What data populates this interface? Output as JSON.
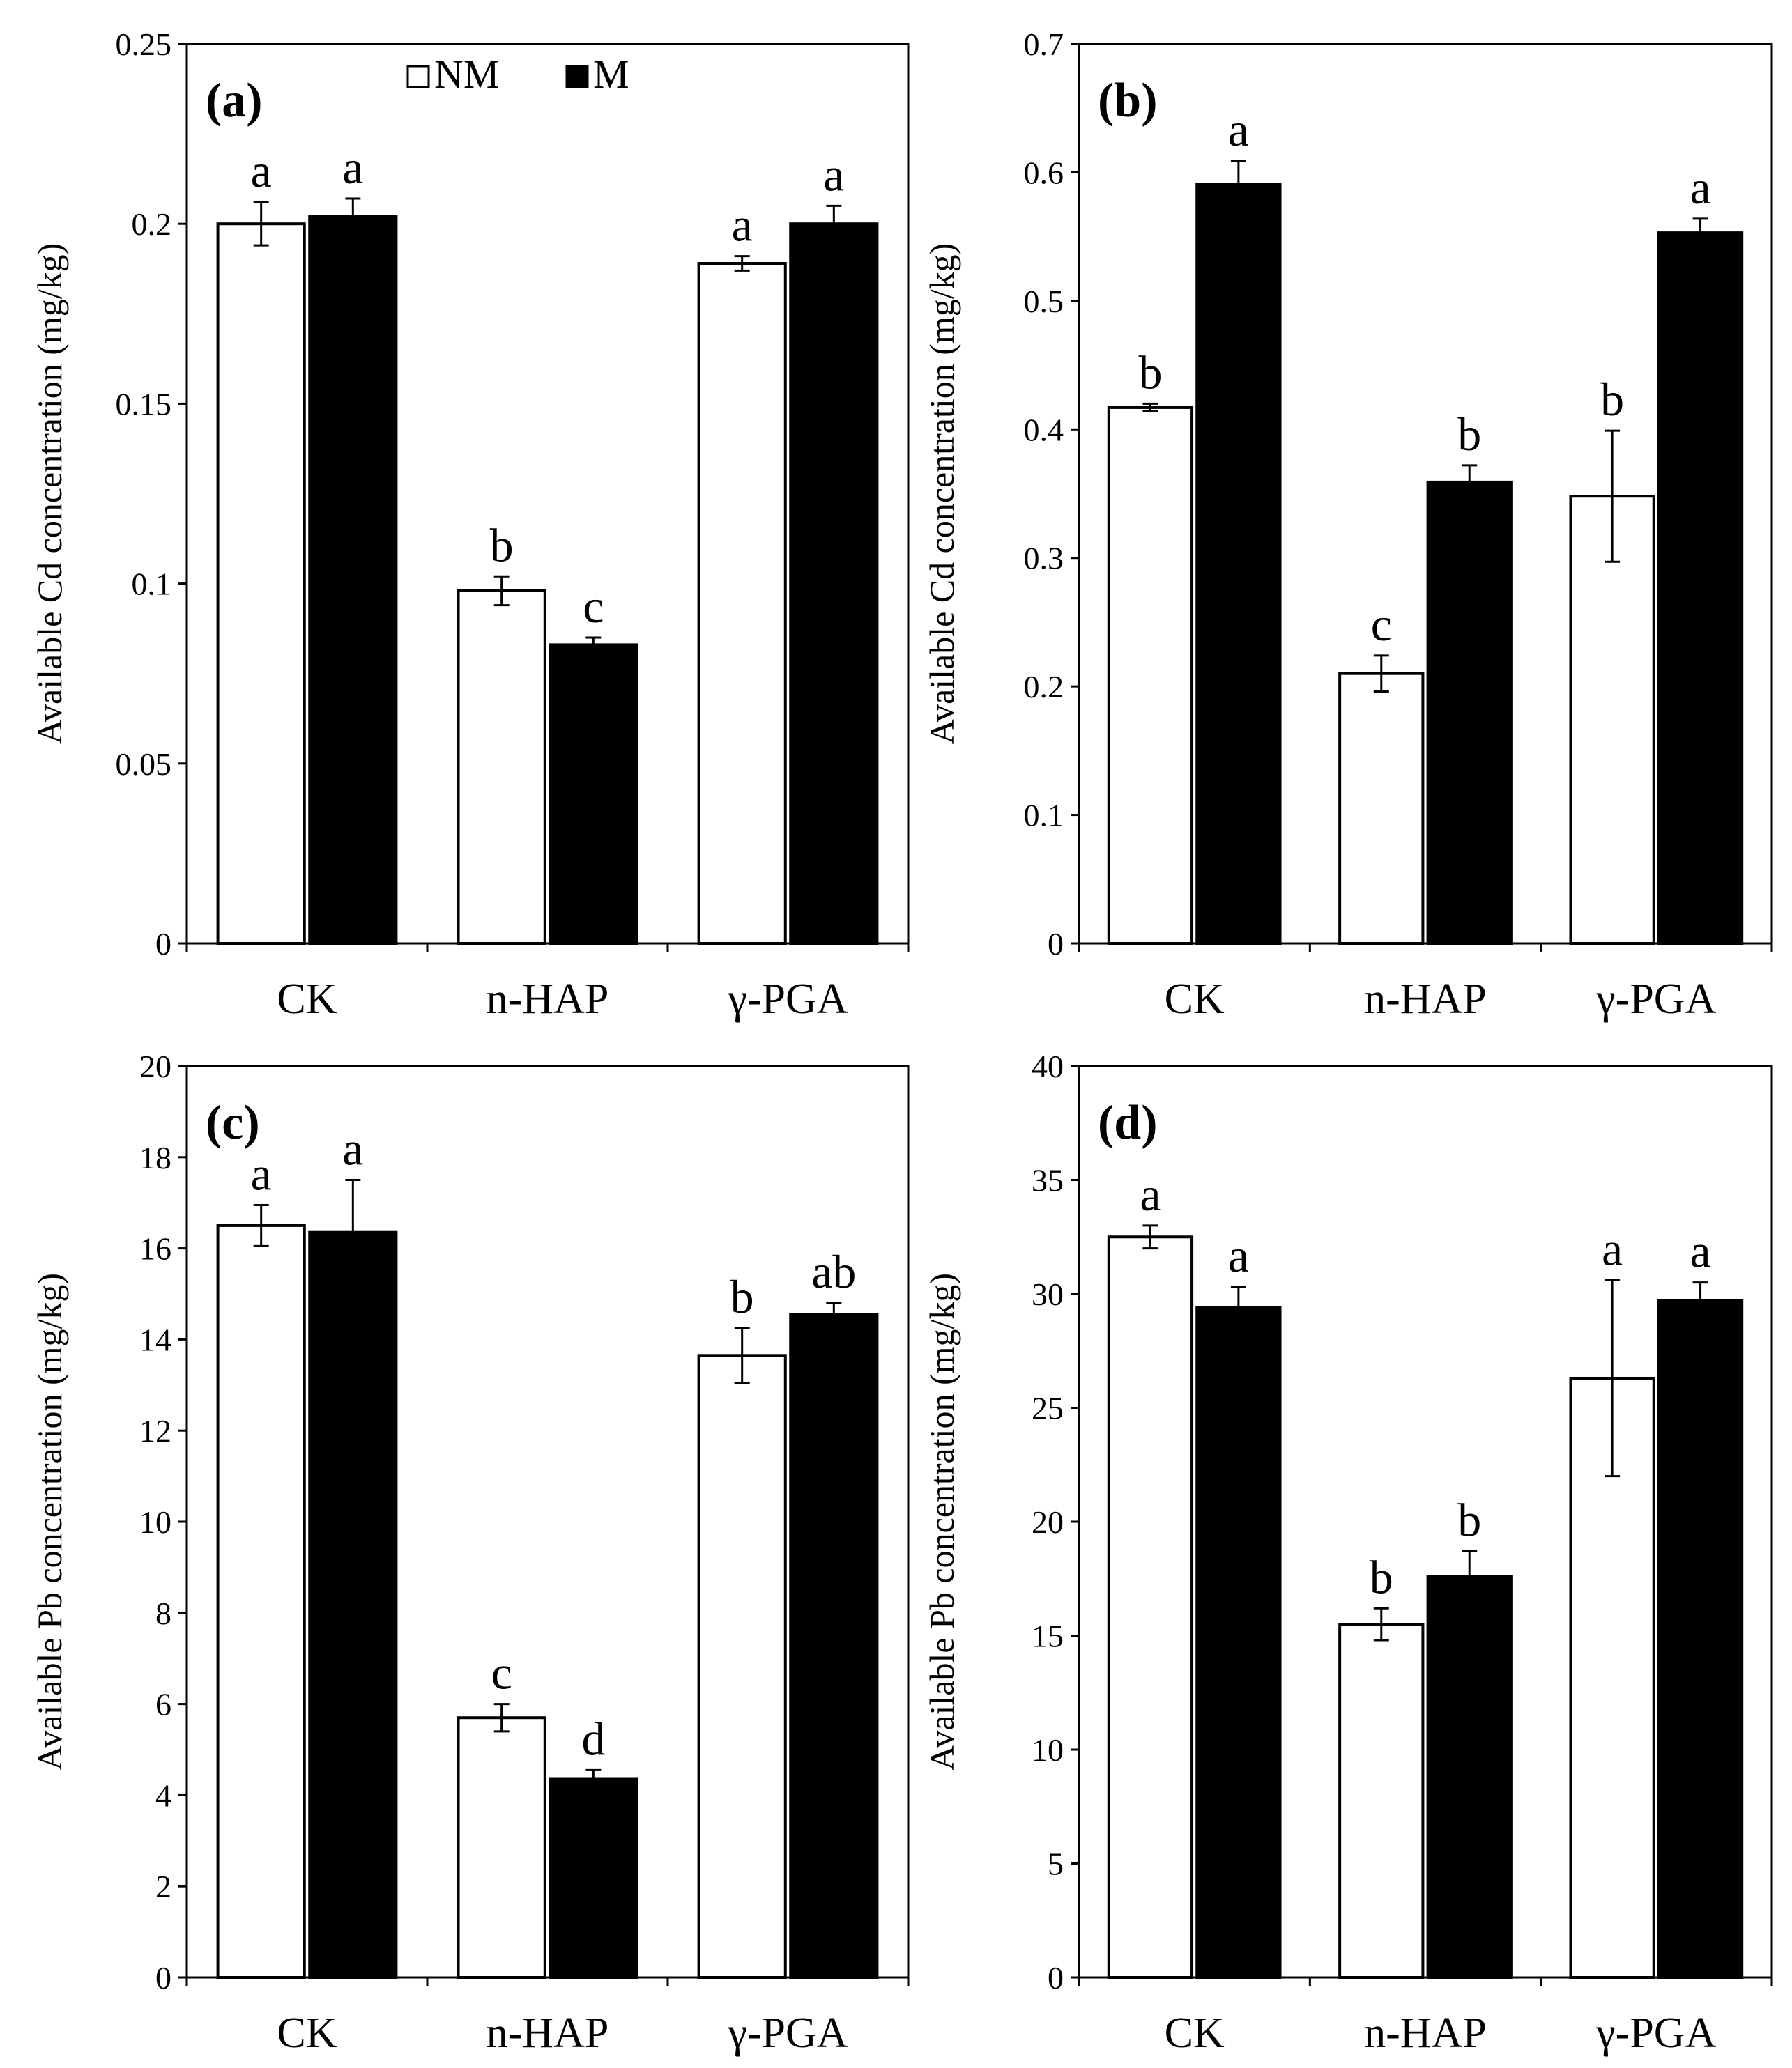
{
  "chart_data": [
    {
      "type": "bar",
      "panel_label": "(a)",
      "ylabel": "Available Cd concentration (mg/kg)",
      "ylim": [
        0,
        0.25
      ],
      "yticks": [
        "0",
        "0.05",
        "0.1",
        "0.15",
        "0.2",
        "0.25"
      ],
      "categories": [
        "CK",
        "n-HAP",
        "γ-PGA"
      ],
      "legend": {
        "position": "top-center",
        "entries": [
          "NM",
          "M"
        ]
      },
      "series": [
        {
          "name": "NM",
          "values": [
            0.2,
            0.098,
            0.189
          ],
          "errors": [
            0.006,
            0.004,
            0.002
          ],
          "letters": [
            "a",
            "b",
            "a"
          ]
        },
        {
          "name": "M",
          "values": [
            0.202,
            0.083,
            0.2
          ],
          "errors": [
            0.005,
            0.002,
            0.005
          ],
          "letters": [
            "a",
            "c",
            "a"
          ]
        }
      ]
    },
    {
      "type": "bar",
      "panel_label": "(b)",
      "ylabel": "Available Cd concentration (mg/kg)",
      "ylim": [
        0,
        0.7
      ],
      "yticks": [
        "0",
        "0.1",
        "0.2",
        "0.3",
        "0.4",
        "0.5",
        "0.6",
        "0.7"
      ],
      "categories": [
        "CK",
        "n-HAP",
        "γ-PGA"
      ],
      "series": [
        {
          "name": "NM",
          "values": [
            0.417,
            0.21,
            0.348
          ],
          "errors": [
            0.003,
            0.014,
            0.051
          ],
          "letters": [
            "b",
            "c",
            "b"
          ]
        },
        {
          "name": "M",
          "values": [
            0.591,
            0.359,
            0.553
          ],
          "errors": [
            0.018,
            0.013,
            0.011
          ],
          "letters": [
            "a",
            "b",
            "a"
          ]
        }
      ]
    },
    {
      "type": "bar",
      "panel_label": "(c)",
      "ylabel": "Available Pb concentration (mg/kg)",
      "ylim": [
        0,
        20
      ],
      "yticks": [
        "0",
        "2",
        "4",
        "6",
        "8",
        "10",
        "12",
        "14",
        "16",
        "18",
        "20"
      ],
      "categories": [
        "CK",
        "n-HAP",
        "γ-PGA"
      ],
      "series": [
        {
          "name": "NM",
          "values": [
            16.5,
            5.7,
            13.65
          ],
          "errors": [
            0.45,
            0.3,
            0.6
          ],
          "letters": [
            "a",
            "c",
            "b"
          ]
        },
        {
          "name": "M",
          "values": [
            16.35,
            4.35,
            14.55
          ],
          "errors": [
            1.15,
            0.2,
            0.25
          ],
          "letters": [
            "a",
            "d",
            "ab"
          ]
        }
      ]
    },
    {
      "type": "bar",
      "panel_label": "(d)",
      "ylabel": "Available Pb concentration (mg/kg)",
      "ylim": [
        0,
        40
      ],
      "yticks": [
        "0",
        "5",
        "10",
        "15",
        "20",
        "25",
        "30",
        "35",
        "40"
      ],
      "categories": [
        "CK",
        "n-HAP",
        "γ-PGA"
      ],
      "series": [
        {
          "name": "NM",
          "values": [
            32.5,
            15.5,
            26.3
          ],
          "errors": [
            0.5,
            0.7,
            4.3
          ],
          "letters": [
            "a",
            "b",
            "a"
          ]
        },
        {
          "name": "M",
          "values": [
            29.4,
            17.6,
            29.7
          ],
          "errors": [
            0.9,
            1.1,
            0.8
          ],
          "letters": [
            "a",
            "b",
            "a"
          ]
        }
      ]
    }
  ]
}
